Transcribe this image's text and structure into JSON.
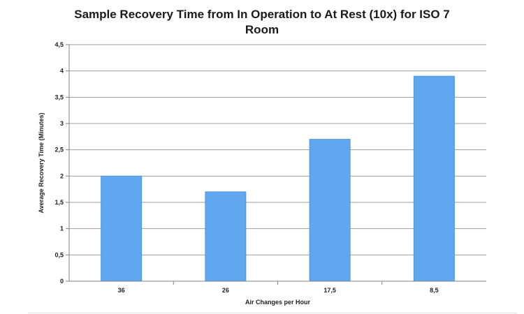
{
  "chart_data": {
    "type": "bar",
    "title": "Sample Recovery Time from In Operation to At Rest (10x) for ISO 7 Room",
    "xlabel": "Air Changes per Hour",
    "ylabel": "Average Recovery Time (Minutes)",
    "categories": [
      "36",
      "26",
      "17,5",
      "8,5"
    ],
    "values": [
      2.0,
      1.7,
      2.7,
      3.9
    ],
    "ylim": [
      0,
      4.5
    ],
    "yticks": [
      0,
      0.5,
      1,
      1.5,
      2,
      2.5,
      3,
      3.5,
      4,
      4.5
    ],
    "ytick_labels": [
      "0",
      "0,5",
      "1",
      "1,5",
      "2",
      "2,5",
      "3",
      "3,5",
      "4",
      "4,5"
    ],
    "grid": true,
    "legend": "none",
    "bar_color": "#5fa8f0",
    "bar_edge_color": "#4f97de",
    "grid_color": "#9e9e9e"
  }
}
